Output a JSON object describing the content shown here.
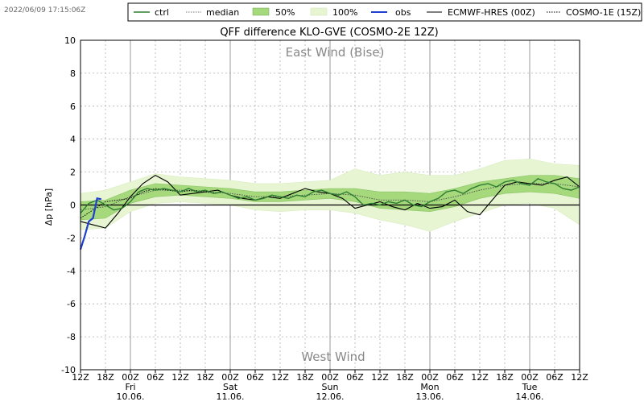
{
  "timestamp": "2022/06/09 17:15:06Z",
  "legend": {
    "ctrl": "ctrl",
    "median": "median",
    "p50": "50%",
    "p100": "100%",
    "obs": "obs",
    "ecmwf": "ECMWF-HRES (00Z)",
    "cosmo1e": "COSMO-1E (15Z)"
  },
  "colors": {
    "ctrl": "#2e7d32",
    "p50": "#a5d97c",
    "p100": "#e8f5d2",
    "obs": "#1f3fd1",
    "ecmwf": "#000000",
    "zero_line": "#000000",
    "grid": "#b0b0b0"
  },
  "chart_data": {
    "type": "line",
    "title": "QFF difference KLO-GVE (COSMO-2E 12Z)",
    "ylabel": "Δp [hPa]",
    "xlabel": "",
    "annotation_top": "East Wind (Bise)",
    "annotation_bottom": "West Wind",
    "ylim": [
      -10,
      10
    ],
    "yticks": [
      -10,
      -8,
      -6,
      -4,
      -2,
      0,
      2,
      4,
      6,
      8,
      10
    ],
    "xlim_hours": [
      0,
      120
    ],
    "x_ticks": [
      {
        "h": 0,
        "label": "12Z"
      },
      {
        "h": 6,
        "label": "18Z"
      },
      {
        "h": 12,
        "label": "00Z"
      },
      {
        "h": 18,
        "label": "06Z"
      },
      {
        "h": 24,
        "label": "12Z"
      },
      {
        "h": 30,
        "label": "18Z"
      },
      {
        "h": 36,
        "label": "00Z"
      },
      {
        "h": 42,
        "label": "06Z"
      },
      {
        "h": 48,
        "label": "12Z"
      },
      {
        "h": 54,
        "label": "18Z"
      },
      {
        "h": 60,
        "label": "00Z"
      },
      {
        "h": 66,
        "label": "06Z"
      },
      {
        "h": 72,
        "label": "12Z"
      },
      {
        "h": 78,
        "label": "18Z"
      },
      {
        "h": 84,
        "label": "00Z"
      },
      {
        "h": 90,
        "label": "06Z"
      },
      {
        "h": 96,
        "label": "12Z"
      },
      {
        "h": 102,
        "label": "18Z"
      },
      {
        "h": 108,
        "label": "00Z"
      },
      {
        "h": 114,
        "label": "06Z"
      },
      {
        "h": 120,
        "label": "12Z"
      }
    ],
    "day_labels": [
      {
        "h": 12,
        "day": "Fri",
        "date": "10.06."
      },
      {
        "h": 36,
        "day": "Sat",
        "date": "11.06."
      },
      {
        "h": 60,
        "day": "Sun",
        "date": "12.06."
      },
      {
        "h": 84,
        "day": "Mon",
        "date": "13.06."
      },
      {
        "h": 108,
        "day": "Tue",
        "date": "14.06."
      }
    ],
    "grid": true,
    "legend_position": "top-right",
    "series": [
      {
        "name": "obs",
        "x": [
          0,
          1,
          2,
          3,
          4,
          5
        ],
        "y": [
          -2.7,
          -1.9,
          -1.0,
          -0.8,
          0.4,
          0.35
        ]
      },
      {
        "name": "ctrl",
        "x": [
          0,
          2,
          4,
          6,
          8,
          10,
          12,
          14,
          16,
          18,
          20,
          22,
          24,
          26,
          28,
          30,
          32,
          34,
          36,
          38,
          40,
          42,
          44,
          46,
          48,
          50,
          52,
          54,
          56,
          58,
          60,
          62,
          64,
          66,
          68,
          70,
          72,
          74,
          76,
          78,
          80,
          82,
          84,
          86,
          88,
          90,
          92,
          94,
          96,
          98,
          100,
          102,
          104,
          106,
          108,
          110,
          112,
          114,
          116,
          118,
          120
        ],
        "y": [
          -0.5,
          0.1,
          0.3,
          0.0,
          -0.3,
          -0.2,
          0.2,
          0.8,
          1.0,
          0.9,
          1.0,
          0.9,
          0.8,
          1.0,
          0.8,
          0.9,
          0.7,
          0.8,
          0.6,
          0.4,
          0.5,
          0.3,
          0.4,
          0.6,
          0.5,
          0.4,
          0.6,
          0.5,
          0.8,
          0.9,
          0.7,
          0.6,
          0.8,
          0.5,
          0.0,
          0.1,
          0.0,
          0.2,
          0.1,
          0.3,
          0.0,
          -0.1,
          0.2,
          0.4,
          0.8,
          0.9,
          0.7,
          1.0,
          1.2,
          1.3,
          1.1,
          1.4,
          1.5,
          1.3,
          1.2,
          1.6,
          1.4,
          1.3,
          1.0,
          0.9,
          1.1
        ]
      },
      {
        "name": "median",
        "x": [
          0,
          6,
          12,
          18,
          24,
          30,
          36,
          42,
          48,
          54,
          60,
          66,
          72,
          78,
          84,
          90,
          96,
          102,
          108,
          114,
          120
        ],
        "y": [
          -0.3,
          -0.1,
          0.5,
          0.9,
          0.9,
          0.8,
          0.7,
          0.5,
          0.5,
          0.6,
          0.7,
          0.6,
          0.3,
          0.3,
          0.2,
          0.5,
          0.9,
          1.2,
          1.3,
          1.3,
          1.1
        ]
      },
      {
        "name": "ECMWF-HRES (00Z)",
        "x": [
          0,
          3,
          6,
          9,
          12,
          15,
          18,
          21,
          24,
          27,
          30,
          33,
          36,
          39,
          42,
          45,
          48,
          51,
          54,
          57,
          60,
          63,
          66,
          69,
          72,
          75,
          78,
          81,
          84,
          87,
          90,
          93,
          96,
          99,
          102,
          105,
          108,
          111,
          114,
          117,
          120
        ],
        "y": [
          -1.0,
          -1.2,
          -1.4,
          -0.5,
          0.5,
          1.3,
          1.8,
          1.4,
          0.6,
          0.7,
          0.8,
          0.9,
          0.6,
          0.4,
          0.3,
          0.5,
          0.4,
          0.7,
          1.0,
          0.8,
          0.7,
          0.4,
          -0.2,
          0.0,
          0.2,
          -0.1,
          -0.3,
          0.1,
          -0.2,
          -0.1,
          0.3,
          -0.4,
          -0.6,
          0.3,
          1.2,
          1.4,
          1.3,
          1.2,
          1.5,
          1.7,
          1.1
        ]
      },
      {
        "name": "COSMO-1E (15Z)",
        "x": [
          0,
          3,
          6,
          9,
          12,
          15,
          18,
          21,
          24,
          27,
          30,
          33
        ],
        "y": [
          -0.8,
          -0.3,
          0.2,
          0.3,
          0.4,
          0.8,
          1.0,
          0.9,
          0.8,
          0.9,
          0.8,
          0.7
        ]
      },
      {
        "name": "50%",
        "x": [
          0,
          6,
          12,
          18,
          24,
          30,
          36,
          42,
          48,
          54,
          60,
          66,
          72,
          78,
          84,
          90,
          96,
          102,
          108,
          114,
          120
        ],
        "low": [
          -0.9,
          -0.8,
          0.1,
          0.5,
          0.6,
          0.5,
          0.4,
          0.2,
          0.2,
          0.3,
          0.4,
          0.2,
          -0.2,
          -0.3,
          -0.4,
          -0.1,
          0.4,
          0.7,
          0.8,
          0.7,
          0.4
        ],
        "high": [
          0.2,
          0.3,
          0.9,
          1.3,
          1.2,
          1.1,
          1.0,
          0.8,
          0.8,
          0.9,
          1.0,
          1.0,
          0.8,
          0.8,
          0.7,
          1.0,
          1.4,
          1.6,
          1.8,
          1.8,
          1.6
        ]
      },
      {
        "name": "100%",
        "x": [
          0,
          6,
          12,
          18,
          24,
          30,
          36,
          42,
          48,
          54,
          60,
          66,
          72,
          78,
          84,
          90,
          96,
          102,
          108,
          114,
          120
        ],
        "low": [
          -1.5,
          -1.4,
          -0.4,
          0.1,
          0.2,
          0.1,
          0.0,
          -0.3,
          -0.4,
          -0.3,
          -0.3,
          -0.5,
          -0.9,
          -1.2,
          -1.6,
          -1.0,
          -0.5,
          0.0,
          0.1,
          -0.2,
          -1.2
        ],
        "high": [
          0.7,
          0.9,
          1.4,
          1.9,
          1.7,
          1.6,
          1.5,
          1.3,
          1.3,
          1.4,
          1.5,
          2.2,
          1.8,
          2.0,
          1.8,
          1.8,
          2.2,
          2.7,
          2.8,
          2.5,
          2.4
        ]
      }
    ]
  }
}
